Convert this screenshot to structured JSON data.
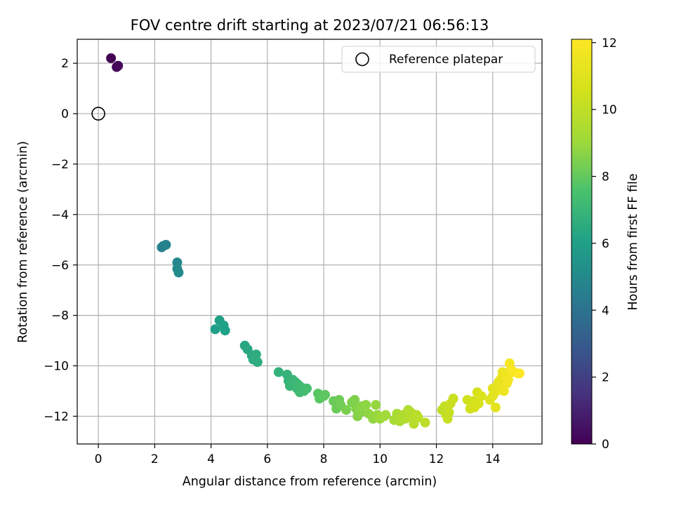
{
  "chart_data": {
    "type": "scatter",
    "title": "FOV centre drift starting at 2023/07/21 06:56:13",
    "xlabel": "Angular distance from reference (arcmin)",
    "ylabel": "Rotation from reference (arcmin)",
    "xlim": [
      -0.75,
      15.75
    ],
    "ylim": [
      -13.1,
      2.95
    ],
    "xticks": [
      0,
      2,
      4,
      6,
      8,
      10,
      12,
      14
    ],
    "yticks": [
      -12,
      -10,
      -8,
      -6,
      -4,
      -2,
      0,
      2
    ],
    "grid": true,
    "legend": {
      "position": "top-right",
      "entries": [
        "Reference platepar"
      ]
    },
    "reference_point": {
      "x": 0,
      "y": 0
    },
    "colorbar": {
      "label": "Hours from first FF file",
      "colormap": "viridis",
      "range": [
        0,
        12.1
      ],
      "ticks": [
        0,
        2,
        4,
        6,
        8,
        10,
        12
      ]
    },
    "series": [
      {
        "points": [
          {
            "x": 0.45,
            "y": 2.2,
            "c": 0.0
          },
          {
            "x": 0.65,
            "y": 1.85,
            "c": 0.1
          },
          {
            "x": 0.7,
            "y": 1.9,
            "c": 0.2
          },
          {
            "x": 2.25,
            "y": -5.3,
            "c": 4.6
          },
          {
            "x": 2.3,
            "y": -5.25,
            "c": 4.65
          },
          {
            "x": 2.4,
            "y": -5.2,
            "c": 4.7
          },
          {
            "x": 2.8,
            "y": -5.9,
            "c": 4.9
          },
          {
            "x": 2.8,
            "y": -6.15,
            "c": 5.0
          },
          {
            "x": 2.85,
            "y": -6.3,
            "c": 5.05
          },
          {
            "x": 4.15,
            "y": -8.55,
            "c": 5.9
          },
          {
            "x": 4.3,
            "y": -8.2,
            "c": 5.95
          },
          {
            "x": 4.45,
            "y": -8.4,
            "c": 6.0
          },
          {
            "x": 4.5,
            "y": -8.6,
            "c": 6.05
          },
          {
            "x": 5.2,
            "y": -9.2,
            "c": 6.3
          },
          {
            "x": 5.3,
            "y": -9.35,
            "c": 6.35
          },
          {
            "x": 5.45,
            "y": -9.6,
            "c": 6.4
          },
          {
            "x": 5.5,
            "y": -9.75,
            "c": 6.45
          },
          {
            "x": 5.6,
            "y": -9.55,
            "c": 6.5
          },
          {
            "x": 5.65,
            "y": -9.85,
            "c": 6.55
          },
          {
            "x": 5.55,
            "y": -9.7,
            "c": 6.6
          },
          {
            "x": 6.4,
            "y": -10.25,
            "c": 6.8
          },
          {
            "x": 6.7,
            "y": -10.35,
            "c": 6.85
          },
          {
            "x": 6.75,
            "y": -10.6,
            "c": 6.9
          },
          {
            "x": 6.8,
            "y": -10.8,
            "c": 6.95
          },
          {
            "x": 6.9,
            "y": -10.55,
            "c": 7.0
          },
          {
            "x": 7.0,
            "y": -10.65,
            "c": 7.05
          },
          {
            "x": 7.05,
            "y": -10.9,
            "c": 7.1
          },
          {
            "x": 7.1,
            "y": -10.75,
            "c": 7.15
          },
          {
            "x": 7.15,
            "y": -11.05,
            "c": 7.2
          },
          {
            "x": 7.2,
            "y": -10.85,
            "c": 7.25
          },
          {
            "x": 7.3,
            "y": -11.0,
            "c": 7.3
          },
          {
            "x": 7.4,
            "y": -10.9,
            "c": 7.35
          },
          {
            "x": 7.8,
            "y": -11.1,
            "c": 7.8
          },
          {
            "x": 7.85,
            "y": -11.3,
            "c": 7.85
          },
          {
            "x": 8.0,
            "y": -11.2,
            "c": 7.9
          },
          {
            "x": 8.05,
            "y": -11.15,
            "c": 7.95
          },
          {
            "x": 8.35,
            "y": -11.4,
            "c": 8.1
          },
          {
            "x": 8.45,
            "y": -11.7,
            "c": 8.15
          },
          {
            "x": 8.55,
            "y": -11.35,
            "c": 8.2
          },
          {
            "x": 8.6,
            "y": -11.55,
            "c": 8.25
          },
          {
            "x": 8.8,
            "y": -11.75,
            "c": 8.4
          },
          {
            "x": 9.0,
            "y": -11.45,
            "c": 8.45
          },
          {
            "x": 9.1,
            "y": -11.35,
            "c": 8.5
          },
          {
            "x": 9.15,
            "y": -11.7,
            "c": 8.55
          },
          {
            "x": 9.2,
            "y": -12.0,
            "c": 8.6
          },
          {
            "x": 9.3,
            "y": -11.85,
            "c": 8.65
          },
          {
            "x": 9.35,
            "y": -11.6,
            "c": 8.7
          },
          {
            "x": 9.5,
            "y": -11.55,
            "c": 8.75
          },
          {
            "x": 9.6,
            "y": -11.9,
            "c": 8.8
          },
          {
            "x": 9.75,
            "y": -12.1,
            "c": 8.85
          },
          {
            "x": 9.85,
            "y": -11.55,
            "c": 8.9
          },
          {
            "x": 9.9,
            "y": -11.95,
            "c": 8.95
          },
          {
            "x": 10.0,
            "y": -12.1,
            "c": 9.0
          },
          {
            "x": 10.15,
            "y": -12.0,
            "c": 9.05
          },
          {
            "x": 10.2,
            "y": -11.95,
            "c": 9.1
          },
          {
            "x": 10.5,
            "y": -12.15,
            "c": 9.3
          },
          {
            "x": 10.6,
            "y": -11.9,
            "c": 9.35
          },
          {
            "x": 10.65,
            "y": -12.05,
            "c": 9.4
          },
          {
            "x": 10.7,
            "y": -12.2,
            "c": 9.45
          },
          {
            "x": 10.8,
            "y": -11.95,
            "c": 9.5
          },
          {
            "x": 10.9,
            "y": -12.1,
            "c": 9.55
          },
          {
            "x": 11.0,
            "y": -11.75,
            "c": 9.6
          },
          {
            "x": 11.05,
            "y": -12.0,
            "c": 9.65
          },
          {
            "x": 11.1,
            "y": -11.85,
            "c": 9.7
          },
          {
            "x": 11.2,
            "y": -12.3,
            "c": 9.75
          },
          {
            "x": 11.3,
            "y": -11.95,
            "c": 9.8
          },
          {
            "x": 11.35,
            "y": -12.05,
            "c": 9.85
          },
          {
            "x": 11.6,
            "y": -12.25,
            "c": 9.9
          },
          {
            "x": 12.2,
            "y": -11.75,
            "c": 10.0
          },
          {
            "x": 12.3,
            "y": -11.6,
            "c": 10.05
          },
          {
            "x": 12.35,
            "y": -11.95,
            "c": 10.1
          },
          {
            "x": 12.4,
            "y": -12.1,
            "c": 10.15
          },
          {
            "x": 12.45,
            "y": -11.85,
            "c": 10.2
          },
          {
            "x": 12.5,
            "y": -11.5,
            "c": 10.25
          },
          {
            "x": 12.6,
            "y": -11.3,
            "c": 10.3
          },
          {
            "x": 13.1,
            "y": -11.35,
            "c": 10.5
          },
          {
            "x": 13.2,
            "y": -11.7,
            "c": 10.55
          },
          {
            "x": 13.3,
            "y": -11.4,
            "c": 10.6
          },
          {
            "x": 13.35,
            "y": -11.65,
            "c": 10.65
          },
          {
            "x": 13.45,
            "y": -11.05,
            "c": 10.7
          },
          {
            "x": 13.5,
            "y": -11.5,
            "c": 10.75
          },
          {
            "x": 13.6,
            "y": -11.2,
            "c": 10.8
          },
          {
            "x": 13.9,
            "y": -11.35,
            "c": 11.0
          },
          {
            "x": 14.0,
            "y": -11.2,
            "c": 11.05
          },
          {
            "x": 14.0,
            "y": -10.9,
            "c": 11.1
          },
          {
            "x": 14.05,
            "y": -11.1,
            "c": 11.15
          },
          {
            "x": 14.1,
            "y": -11.65,
            "c": 11.2
          },
          {
            "x": 14.15,
            "y": -10.8,
            "c": 11.25
          },
          {
            "x": 14.2,
            "y": -10.65,
            "c": 11.3
          },
          {
            "x": 14.25,
            "y": -10.95,
            "c": 11.35
          },
          {
            "x": 14.3,
            "y": -10.5,
            "c": 11.4
          },
          {
            "x": 14.35,
            "y": -10.25,
            "c": 11.45
          },
          {
            "x": 14.4,
            "y": -11.0,
            "c": 11.5
          },
          {
            "x": 14.45,
            "y": -10.4,
            "c": 11.55
          },
          {
            "x": 14.5,
            "y": -10.7,
            "c": 11.6
          },
          {
            "x": 14.55,
            "y": -10.55,
            "c": 11.65
          },
          {
            "x": 14.6,
            "y": -9.9,
            "c": 11.75
          },
          {
            "x": 14.65,
            "y": -10.15,
            "c": 11.85
          },
          {
            "x": 14.75,
            "y": -10.25,
            "c": 11.95
          },
          {
            "x": 14.9,
            "y": -10.3,
            "c": 12.0
          },
          {
            "x": 14.95,
            "y": -10.3,
            "c": 12.1
          }
        ]
      }
    ]
  }
}
